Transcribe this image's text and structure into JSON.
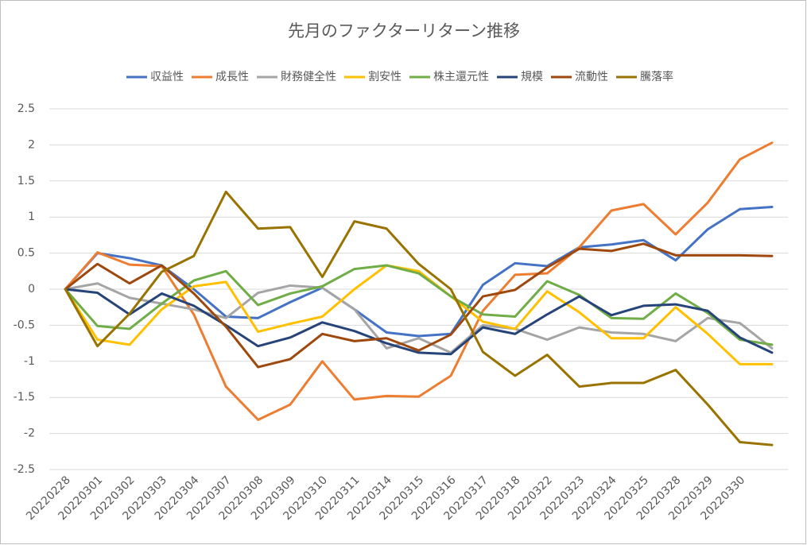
{
  "chart_data": {
    "type": "line",
    "title": "先月のファクターリターン推移",
    "categories": [
      "20220228",
      "20220301",
      "20220302",
      "20220303",
      "20220304",
      "20220307",
      "20220308",
      "20220309",
      "20220310",
      "20220311",
      "20220314",
      "20220315",
      "20220316",
      "20220317",
      "20220318",
      "20220322",
      "20220323",
      "20220324",
      "20220325",
      "20220328",
      "20220329",
      "20220330",
      null
    ],
    "series": [
      {
        "name": "収益性",
        "color": "#4472c4",
        "values": [
          0,
          0.5,
          0.43,
          0.33,
          0.0,
          -0.38,
          -0.4,
          -0.18,
          0.02,
          -0.28,
          -0.6,
          -0.65,
          -0.62,
          0.06,
          0.36,
          0.32,
          0.58,
          0.62,
          0.68,
          0.4,
          0.83,
          1.11,
          1.14
        ]
      },
      {
        "name": "成長性",
        "color": "#ed7d31",
        "values": [
          0,
          0.51,
          0.34,
          0.32,
          -0.35,
          -1.35,
          -1.81,
          -1.6,
          -1.0,
          -1.53,
          -1.48,
          -1.49,
          -1.2,
          -0.3,
          0.2,
          0.22,
          0.58,
          1.09,
          1.18,
          0.76,
          1.2,
          1.8,
          2.03
        ]
      },
      {
        "name": "財務健全性",
        "color": "#a5a5a5",
        "values": [
          0,
          0.08,
          -0.12,
          -0.2,
          -0.28,
          -0.4,
          -0.05,
          0.05,
          0.02,
          -0.28,
          -0.82,
          -0.68,
          -0.88,
          -0.5,
          -0.55,
          -0.7,
          -0.53,
          -0.6,
          -0.62,
          -0.72,
          -0.4,
          -0.47,
          -0.82
        ]
      },
      {
        "name": "割安性",
        "color": "#ffc000",
        "values": [
          0,
          -0.7,
          -0.77,
          -0.28,
          0.04,
          0.1,
          -0.59,
          -0.48,
          -0.38,
          0.0,
          0.33,
          0.25,
          -0.1,
          -0.45,
          -0.55,
          -0.03,
          -0.32,
          -0.68,
          -0.68,
          -0.25,
          -0.62,
          -1.04,
          -1.04
        ]
      },
      {
        "name": "株主還元性",
        "color": "#70ad47",
        "values": [
          0,
          -0.51,
          -0.55,
          -0.2,
          0.12,
          0.25,
          -0.22,
          -0.06,
          0.04,
          0.28,
          0.33,
          0.22,
          -0.1,
          -0.35,
          -0.38,
          0.11,
          -0.08,
          -0.4,
          -0.41,
          -0.06,
          -0.33,
          -0.7,
          -0.77
        ]
      },
      {
        "name": "規模",
        "color": "#264478",
        "values": [
          0,
          -0.05,
          -0.35,
          -0.06,
          -0.23,
          -0.5,
          -0.79,
          -0.67,
          -0.46,
          -0.58,
          -0.75,
          -0.88,
          -0.9,
          -0.53,
          -0.62,
          -0.35,
          -0.1,
          -0.36,
          -0.23,
          -0.21,
          -0.3,
          -0.67,
          -0.88
        ]
      },
      {
        "name": "流動性",
        "color": "#9e480e",
        "values": [
          0,
          0.35,
          0.08,
          0.33,
          -0.06,
          -0.52,
          -1.08,
          -0.97,
          -0.62,
          -0.72,
          -0.68,
          -0.85,
          -0.63,
          -0.1,
          -0.01,
          0.3,
          0.56,
          0.53,
          0.63,
          0.47,
          0.47,
          0.47,
          0.46
        ]
      },
      {
        "name": "騰落率",
        "color": "#997300",
        "values": [
          0,
          -0.79,
          -0.34,
          0.24,
          0.46,
          1.35,
          0.84,
          0.86,
          0.17,
          0.94,
          0.84,
          0.35,
          0.0,
          -0.87,
          -1.2,
          -0.91,
          -1.35,
          -1.3,
          -1.3,
          -1.12,
          -1.6,
          -2.12,
          -2.16
        ]
      }
    ],
    "ylim": [
      -2.5,
      2.5
    ],
    "yticks": [
      2.5,
      2,
      1.5,
      1,
      0.5,
      0,
      -0.5,
      -1,
      -1.5,
      -2,
      -2.5
    ],
    "grid": true,
    "legend": "top"
  }
}
